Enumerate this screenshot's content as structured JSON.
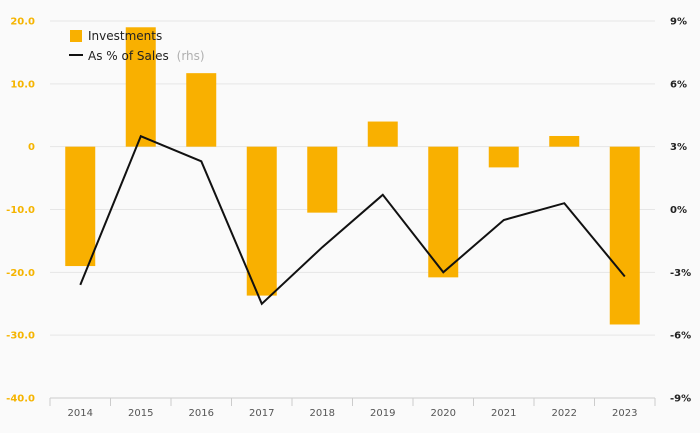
{
  "chart_data": {
    "type": "bar",
    "categories": [
      "2014",
      "2015",
      "2016",
      "2017",
      "2018",
      "2019",
      "2020",
      "2021",
      "2022",
      "2023"
    ],
    "series": [
      {
        "name": "Investments",
        "type": "bar",
        "axis": "left",
        "color": "#f9b000",
        "values": [
          -19.0,
          19.0,
          11.7,
          -23.7,
          -10.5,
          4.0,
          -20.8,
          -3.3,
          1.7,
          -28.3
        ]
      },
      {
        "name": "As % of Sales",
        "type": "line",
        "axis": "right",
        "color": "#111111",
        "values": [
          -3.6,
          3.5,
          2.3,
          -4.5,
          -1.8,
          0.7,
          -3.0,
          -0.5,
          0.3,
          -3.2
        ]
      }
    ],
    "legend_note": "(rhs)",
    "ylim_left": [
      -40,
      20
    ],
    "yticks_left": [
      "20.0",
      "10.0",
      "0",
      "-10.0",
      "-20.0",
      "-30.0",
      "-40.0"
    ],
    "ylim_right": [
      -9,
      9
    ],
    "yticks_right": [
      "9%",
      "6%",
      "3%",
      "0%",
      "-3%",
      "-6%",
      "-9%"
    ],
    "grid": true,
    "legend_position": "top-left"
  }
}
